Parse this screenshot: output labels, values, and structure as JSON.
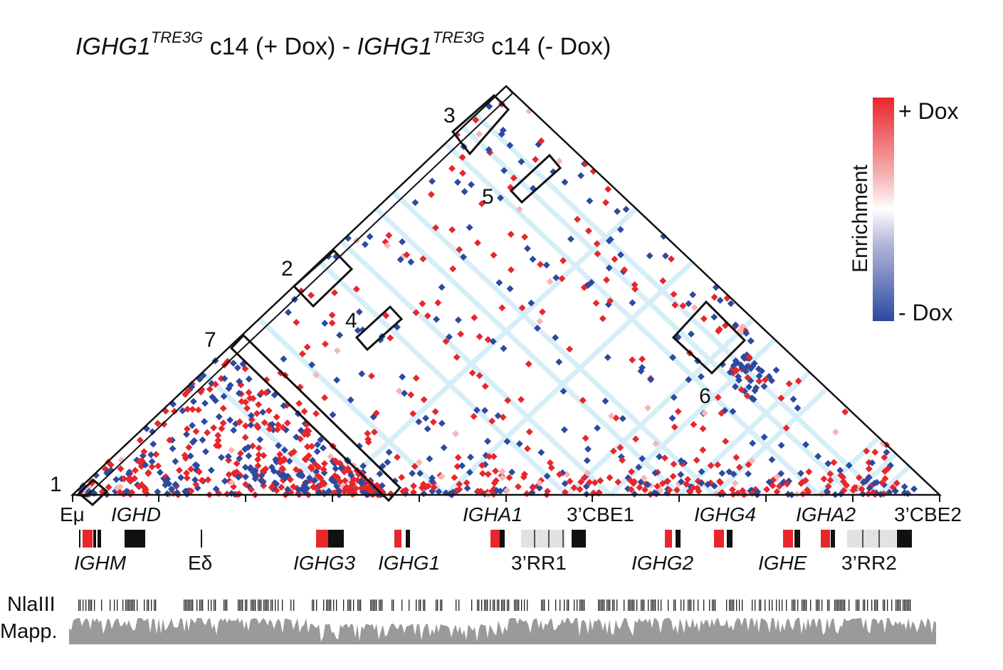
{
  "title": {
    "gene": "IGHG1",
    "superscript": "TRE3G",
    "part1": "c14 (+ Dox) -",
    "part2": "c14 (- Dox)"
  },
  "legend": {
    "top_label": "+ Dox",
    "bottom_label": "- Dox",
    "axis_label": "Enrichment",
    "top_color": "#e8262b",
    "mid_color": "#ffffff",
    "bottom_color": "#2c4aa0"
  },
  "region_numbers": [
    "1",
    "2",
    "3",
    "4",
    "5",
    "6",
    "7"
  ],
  "axis_labels_top": {
    "emu": "Eμ",
    "ighd": "IGHD",
    "igha1": "IGHA1",
    "cbe1": "3’CBE1",
    "ighg4": "IGHG4",
    "igha2": "IGHA2",
    "cbe2": "3’CBE2"
  },
  "axis_labels_bottom": {
    "ighm": "IGHM",
    "edelta": "Eδ",
    "ighg3": "IGHG3",
    "ighg1": "IGHG1",
    "rr1": "3’RR1",
    "ighg2": "IGHG2",
    "ighe": "IGHE",
    "rr2": "3’RR2"
  },
  "tracks": {
    "nlaiii": "NlaIII",
    "mapp": "Mapp."
  },
  "colors": {
    "red": "#e8262b",
    "blue": "#2c4aa0",
    "gray_track": "#9a9a9a",
    "stripe": "#d6eef8"
  }
}
